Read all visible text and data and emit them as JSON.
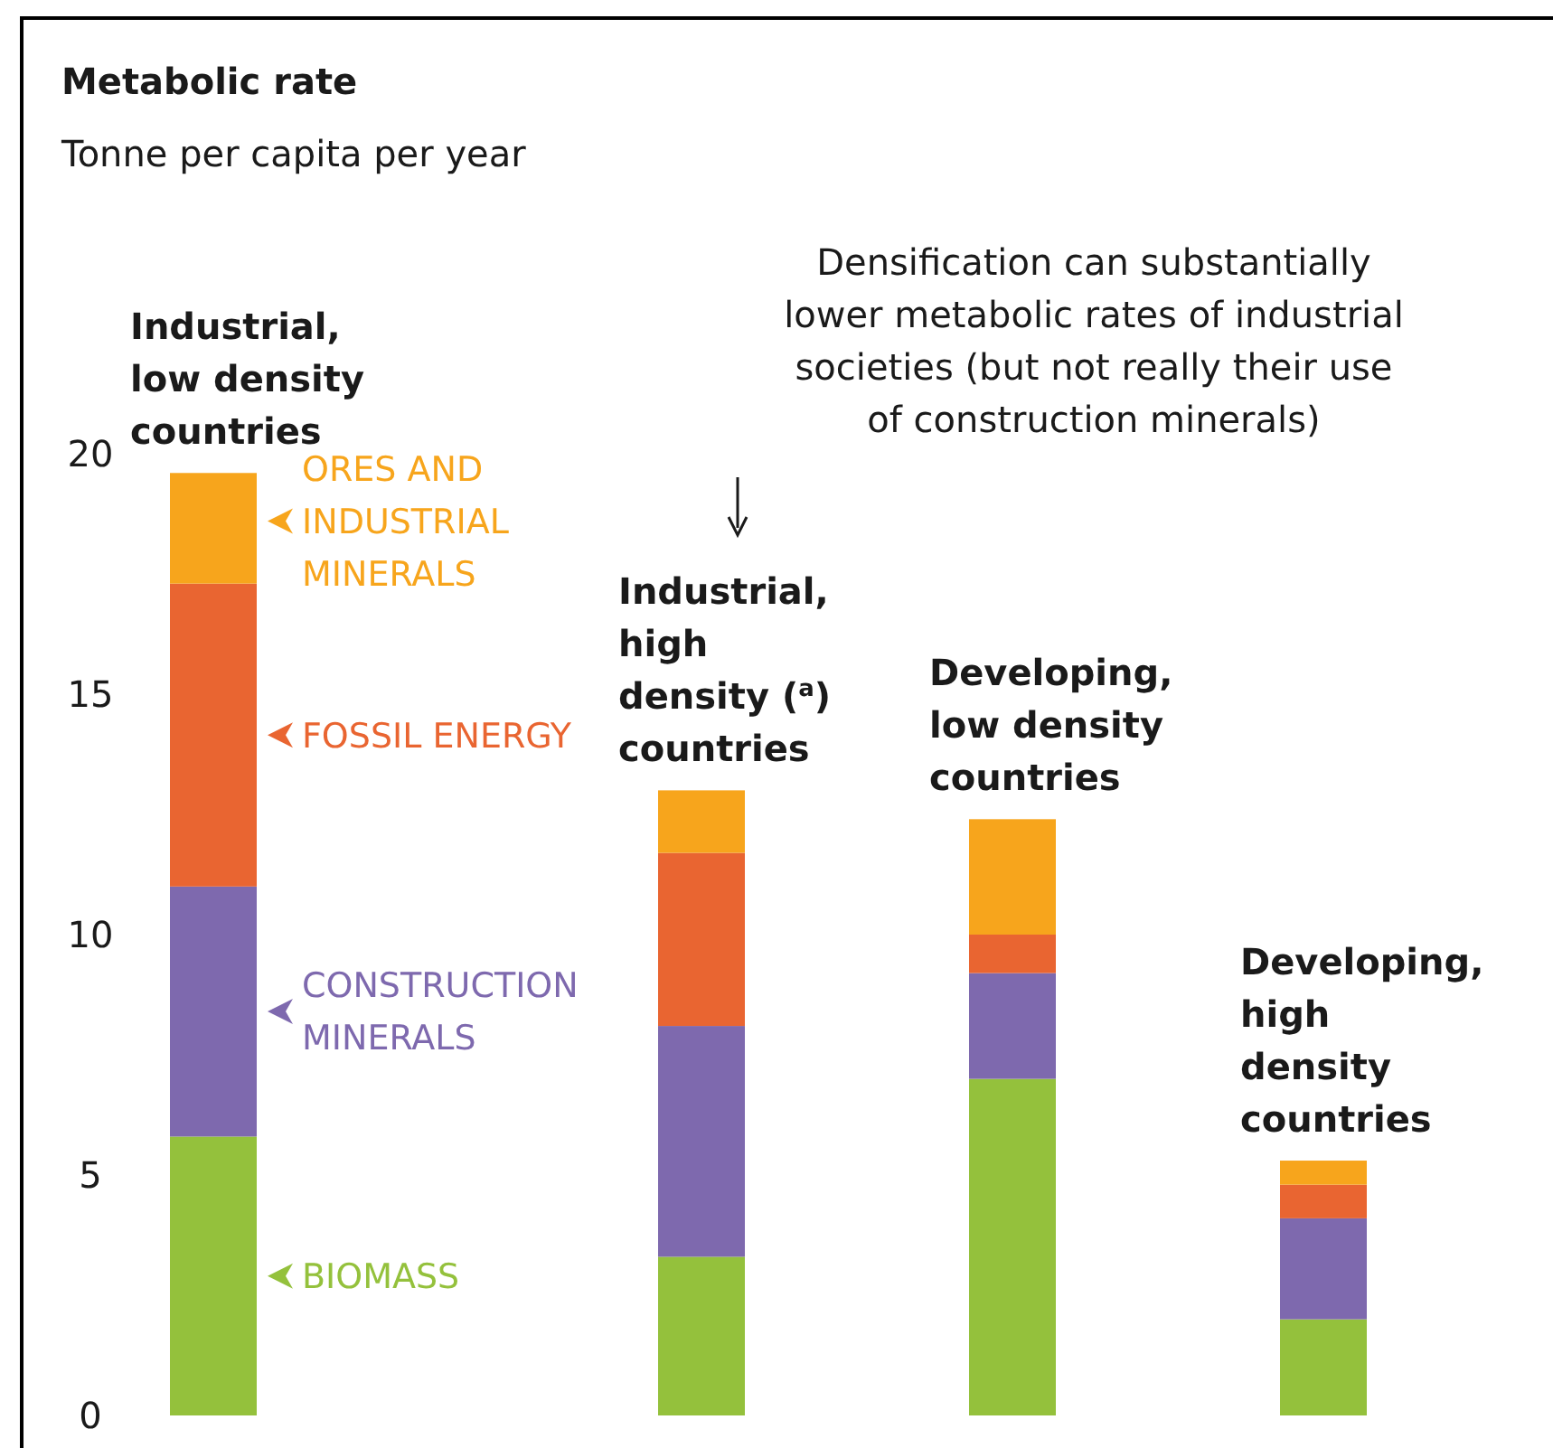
{
  "chart_data": {
    "type": "bar",
    "stacked": true,
    "title": "Metabolic rate",
    "subtitle": "Tonne per capita per year",
    "categories": [
      "Industrial, low density countries",
      "Industrial, high density ($^{a}$) countries",
      "Developing, low density countries",
      "Developing, high density countries"
    ],
    "series": [
      {
        "name": "BIOMASS",
        "color": "#94c13c",
        "values": [
          5.8,
          3.3,
          7.0,
          2.0
        ]
      },
      {
        "name": "CONSTRUCTION MINERALS",
        "color": "#7e69ae",
        "values": [
          5.2,
          4.8,
          2.2,
          2.1
        ]
      },
      {
        "name": "FOSSIL ENERGY",
        "color": "#e96531",
        "values": [
          6.3,
          3.6,
          0.8,
          0.7
        ]
      },
      {
        "name": "ORES AND INDUSTRIAL MINERALS",
        "color": "#f7a51c",
        "values": [
          2.3,
          1.3,
          2.4,
          0.5
        ]
      }
    ],
    "legend": "left",
    "ylim": [
      0,
      20
    ],
    "yticks": [
      0,
      5,
      10,
      15,
      20
    ],
    "grid": false,
    "annotations": [
      "Densification can substantially lower metabolic rates of industrial societies (but not really their use of construction minerals)"
    ]
  }
}
